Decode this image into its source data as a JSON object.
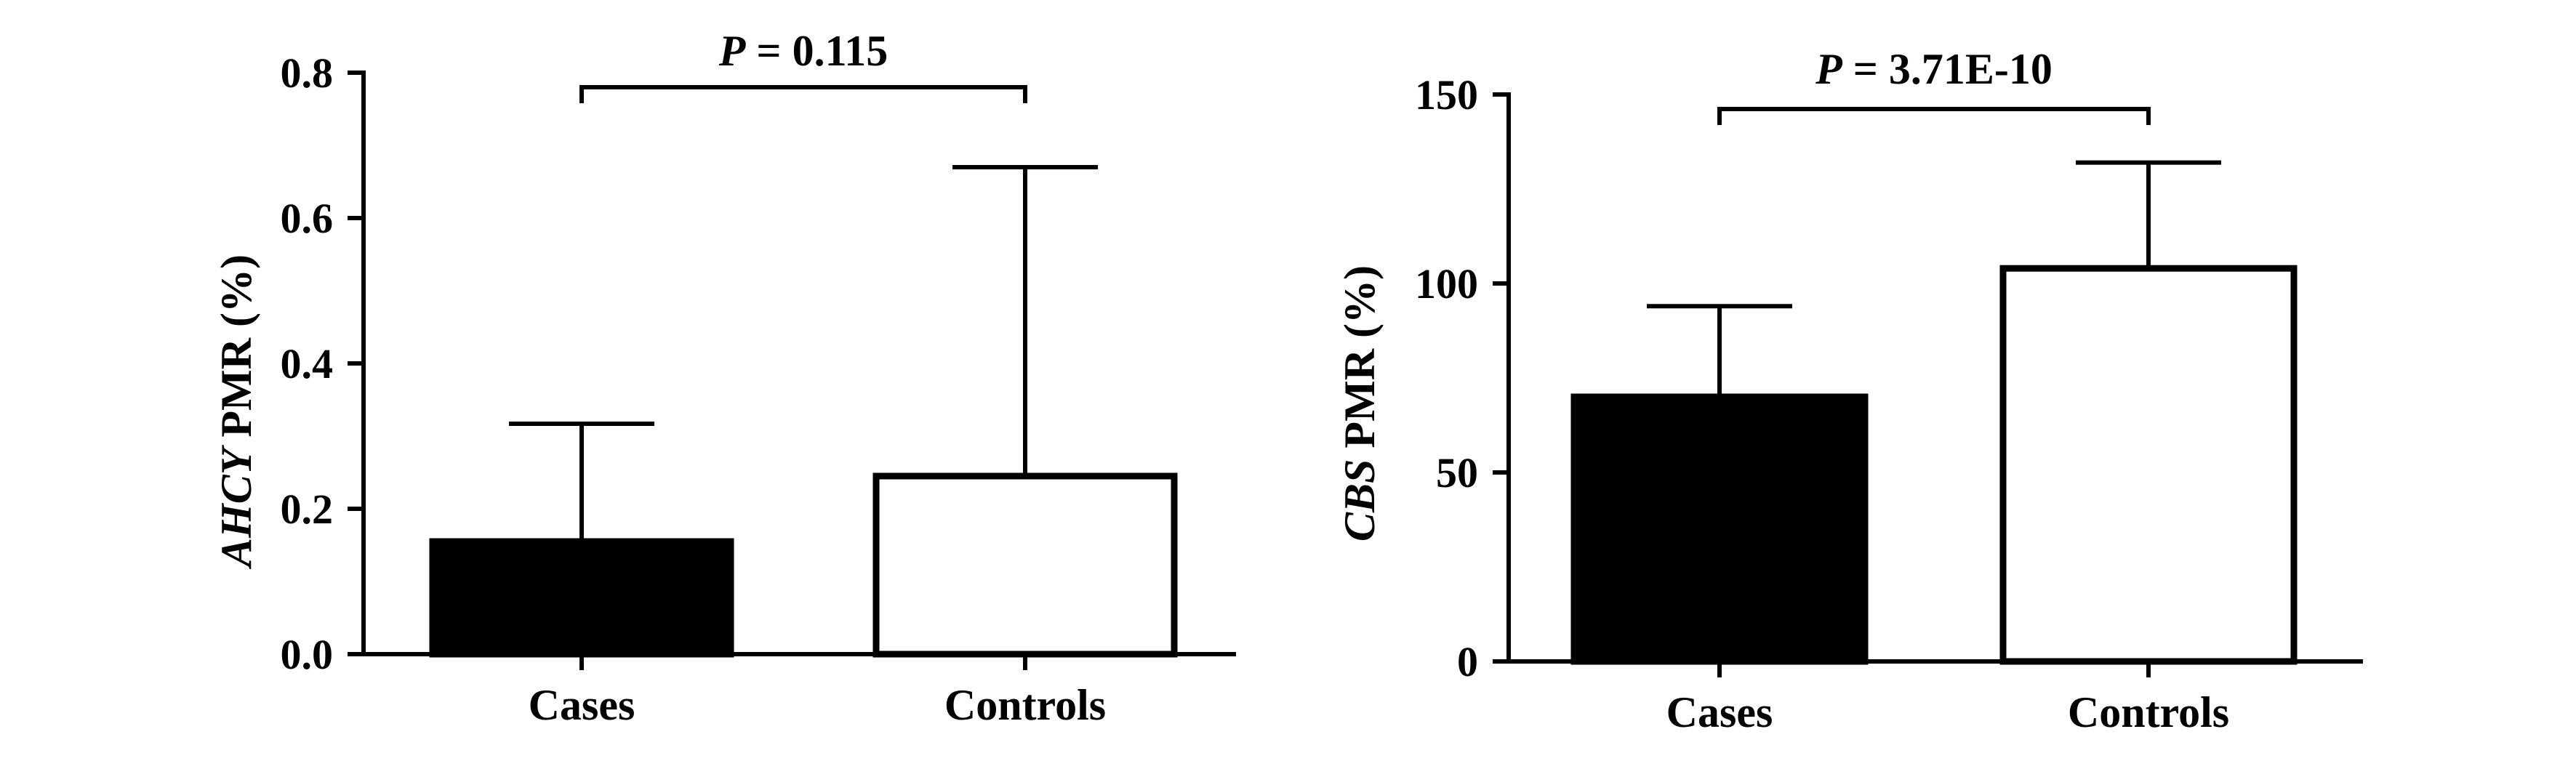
{
  "chart_data": [
    {
      "type": "bar",
      "categories": [
        "Cases",
        "Controls"
      ],
      "values": [
        0.155,
        0.245
      ],
      "error_upper": [
        0.317,
        0.67
      ],
      "bar_fill": [
        "#000000",
        "#ffffff"
      ],
      "ylabel_gene": "AHCY",
      "ylabel_rest": "PMR (%)",
      "ylim": [
        0,
        0.8
      ],
      "yticks": [
        "0.0",
        "0.2",
        "0.4",
        "0.6",
        "0.8"
      ],
      "annotation": {
        "italic": "P",
        "rest": "= 0.115"
      }
    },
    {
      "type": "bar",
      "categories": [
        "Cases",
        "Controls"
      ],
      "values": [
        70,
        104
      ],
      "error_upper": [
        94,
        132
      ],
      "bar_fill": [
        "#000000",
        "#ffffff"
      ],
      "ylabel_gene": "CBS",
      "ylabel_rest": "PMR (%)",
      "ylim": [
        0,
        150
      ],
      "yticks": [
        "0",
        "50",
        "100",
        "150"
      ],
      "annotation": {
        "italic": "P",
        "rest": "= 3.71E-10"
      }
    }
  ]
}
